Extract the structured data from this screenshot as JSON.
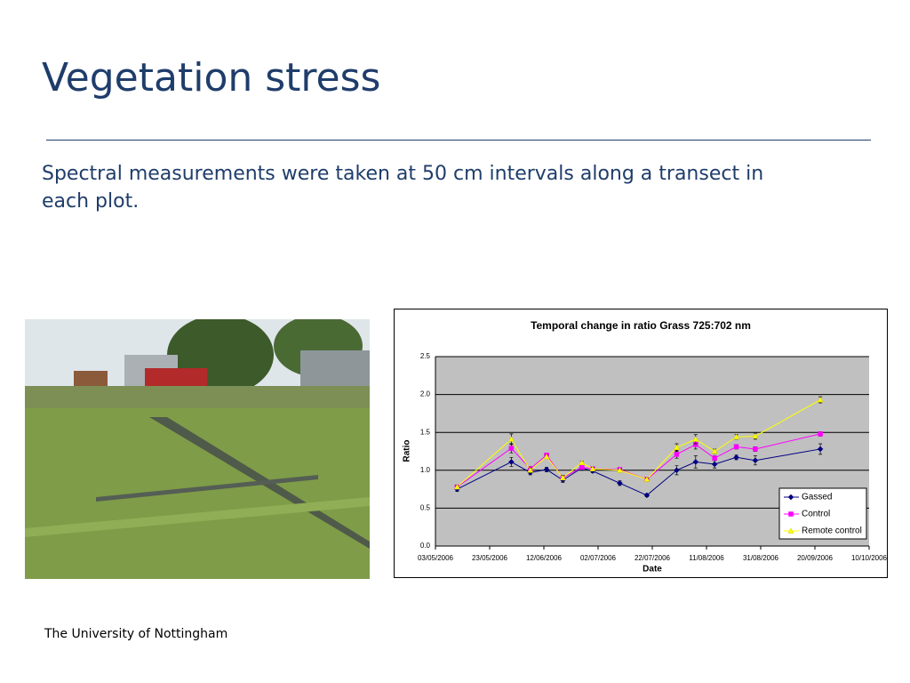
{
  "slide": {
    "title": "Vegetation stress",
    "body": "Spectral measurements were taken at 50 cm intervals along a transect in each plot.",
    "footer": "The University of Nottingham"
  },
  "chart_data": {
    "type": "line",
    "title": "Temporal change in ratio Grass 725:702 nm",
    "x_label": "Date",
    "y_label": "Ratio",
    "x": [
      "2006-05-11",
      "2006-05-31",
      "2006-06-07",
      "2006-06-13",
      "2006-06-19",
      "2006-06-26",
      "2006-06-30",
      "2006-07-10",
      "2006-07-20",
      "2006-07-31",
      "2006-08-07",
      "2006-08-14",
      "2006-08-22",
      "2006-08-29",
      "2006-09-22"
    ],
    "xlim": [
      "2006-05-03",
      "2006-10-10"
    ],
    "xticks": [
      {
        "value": "2006-05-03",
        "label": "03/05/2006"
      },
      {
        "value": "2006-05-23",
        "label": "23/05/2006"
      },
      {
        "value": "2006-06-12",
        "label": "12/06/2006"
      },
      {
        "value": "2006-07-02",
        "label": "02/07/2006"
      },
      {
        "value": "2006-07-22",
        "label": "22/07/2006"
      },
      {
        "value": "2006-08-11",
        "label": "11/08/2006"
      },
      {
        "value": "2006-08-31",
        "label": "31/08/2006"
      },
      {
        "value": "2006-09-20",
        "label": "20/09/2006"
      },
      {
        "value": "2006-10-10",
        "label": "10/10/2006"
      }
    ],
    "ylim": [
      0,
      2.5
    ],
    "yticks": [
      {
        "value": 0,
        "label": "0.0"
      },
      {
        "value": 0.5,
        "label": "0.5"
      },
      {
        "value": 1,
        "label": "1.0"
      },
      {
        "value": 1.5,
        "label": "1.5"
      },
      {
        "value": 2,
        "label": "2.0"
      },
      2.5
    ],
    "grid": true,
    "legend": "lower right",
    "series": [
      {
        "name": "Gassed",
        "color": "#000080",
        "marker": "diamond",
        "values": [
          0.75,
          1.11,
          0.97,
          1.01,
          0.87,
          1.03,
          0.99,
          0.83,
          0.67,
          1.0,
          1.11,
          1.08,
          1.17,
          1.13,
          1.28
        ],
        "errors": [
          0.03,
          0.06,
          0.03,
          0.03,
          0.03,
          0.03,
          0.02,
          0.03,
          0.02,
          0.06,
          0.08,
          0.05,
          0.03,
          0.06,
          0.07
        ]
      },
      {
        "name": "Control",
        "color": "#ff00ff",
        "marker": "square",
        "values": [
          0.78,
          1.29,
          1.02,
          1.2,
          0.9,
          1.04,
          1.02,
          1.01,
          0.88,
          1.21,
          1.34,
          1.16,
          1.31,
          1.28,
          1.48
        ],
        "errors": [
          0.02,
          0.06,
          0.03,
          0.02,
          0.03,
          0.02,
          0.02,
          0.02,
          0.02,
          0.05,
          0.06,
          0.03,
          0.03,
          0.03,
          0.03
        ]
      },
      {
        "name": "Remote control",
        "color": "#ffff00",
        "marker": "triangle",
        "values": [
          0.78,
          1.41,
          1.0,
          1.18,
          0.9,
          1.1,
          1.02,
          1.0,
          0.88,
          1.3,
          1.41,
          1.25,
          1.44,
          1.45,
          1.93
        ],
        "errors": [
          0.02,
          0.07,
          0.03,
          0.02,
          0.03,
          0.02,
          0.02,
          0.02,
          0.02,
          0.05,
          0.06,
          0.03,
          0.03,
          0.04,
          0.04
        ]
      }
    ]
  }
}
